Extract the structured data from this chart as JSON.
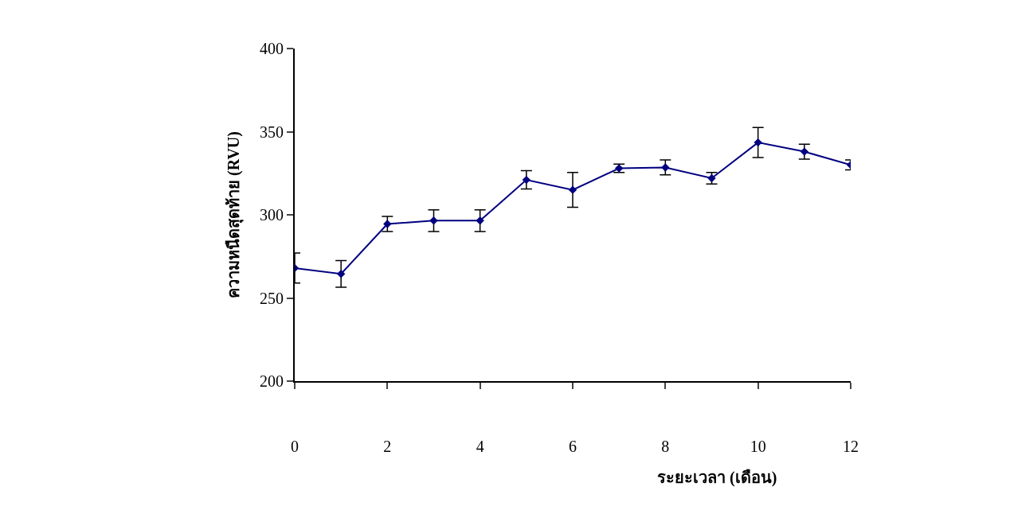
{
  "chart_data": {
    "type": "line",
    "xlabel": "ระยะเวลา (เดือน)",
    "ylabel": "ความหนืดสุดท้าย (RVU)",
    "x": [
      0,
      1,
      2,
      3,
      4,
      5,
      6,
      7,
      8,
      9,
      10,
      11,
      12
    ],
    "series": [
      {
        "color": "#000080",
        "values": [
          268,
          264.5,
          294.5,
          296.5,
          296.5,
          321,
          315,
          328,
          328.5,
          322,
          343.5,
          338,
          330
        ],
        "errors": [
          9,
          8,
          4.5,
          6.5,
          6.5,
          5.5,
          10.5,
          2.5,
          4.5,
          3.5,
          9,
          4.5,
          3
        ]
      }
    ],
    "xlim": [
      0,
      12
    ],
    "xticks": [
      0,
      2,
      4,
      6,
      8,
      10,
      12
    ],
    "ylim": [
      200,
      400
    ],
    "yticks": [
      200,
      250,
      300,
      350,
      400
    ],
    "marker": "diamond",
    "line_style": "solid"
  }
}
